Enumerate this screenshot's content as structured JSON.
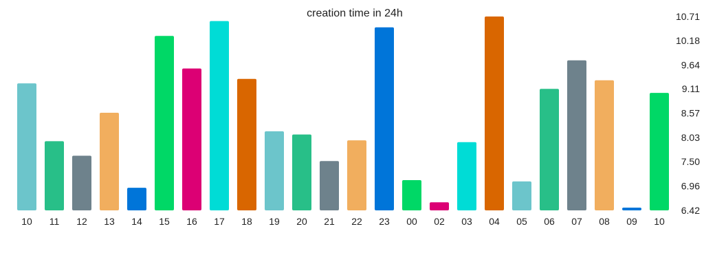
{
  "chart_data": {
    "type": "bar",
    "title": "creation time in 24h",
    "xlabel": "",
    "ylabel": "",
    "categories": [
      "10",
      "11",
      "12",
      "13",
      "14",
      "15",
      "16",
      "17",
      "18",
      "19",
      "20",
      "21",
      "22",
      "23",
      "00",
      "02",
      "03",
      "04",
      "05",
      "06",
      "07",
      "08",
      "09",
      "10"
    ],
    "values": [
      9.23,
      7.95,
      7.63,
      8.58,
      6.92,
      10.28,
      9.56,
      10.61,
      9.33,
      8.17,
      8.1,
      7.51,
      7.97,
      10.47,
      7.09,
      6.6,
      7.93,
      10.71,
      7.06,
      9.11,
      9.74,
      9.3,
      6.44,
      9.02
    ],
    "colors": [
      "#6CC5CB",
      "#28BF88",
      "#6E828C",
      "#F1AE5E",
      "#0075D9",
      "#00D866",
      "#DC0074",
      "#00DCD6",
      "#D96600",
      "#6CC5CB",
      "#28BF88",
      "#6E828C",
      "#F1AE5E",
      "#0075D9",
      "#00D866",
      "#DC0074",
      "#00DCD6",
      "#D96600",
      "#6CC5CB",
      "#28BF88",
      "#6E828C",
      "#F1AE5E",
      "#0075D9",
      "#00D866"
    ],
    "y_ticks": [
      "10.71",
      "10.18",
      "9.64",
      "9.11",
      "8.57",
      "8.03",
      "7.50",
      "6.96",
      "6.42"
    ],
    "ylim": [
      6.42,
      10.71
    ],
    "y_axis_position": "right",
    "grid": false,
    "legend": "none"
  }
}
